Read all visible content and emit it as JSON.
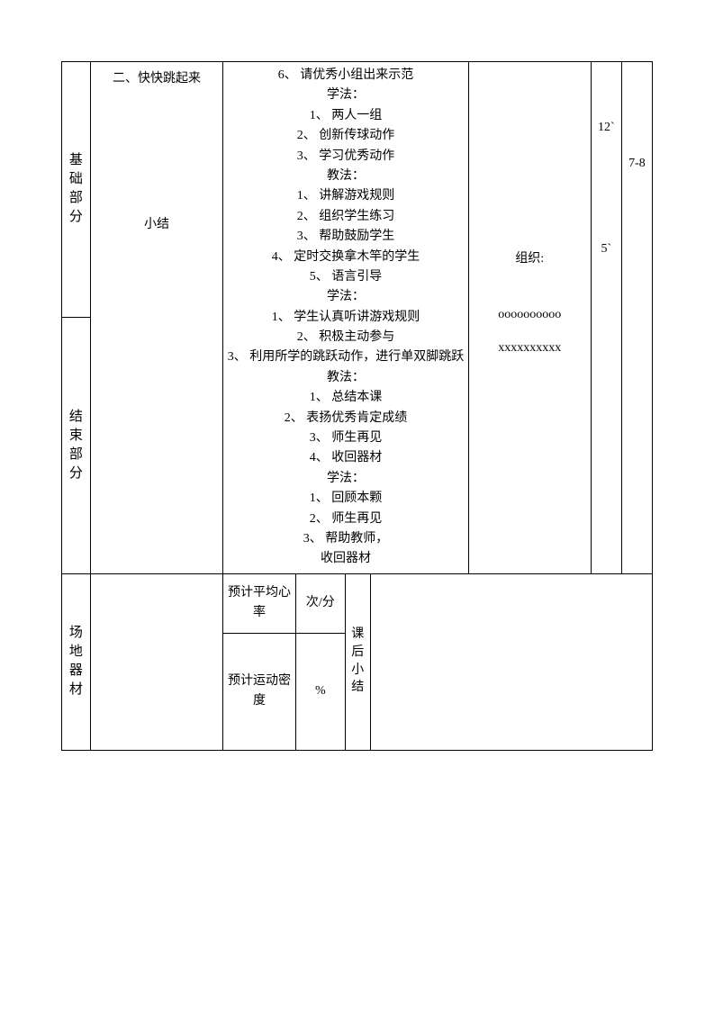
{
  "row1": {
    "labelA": "基础部分",
    "labelB": "结束部分",
    "col2_top": "二、快快跳起来",
    "col2_mid": "小结",
    "col3_lines": [
      "6、  请优秀小组出来示范",
      "学法：",
      "1、  两人一组",
      "2、  创新传球动作",
      "3、  学习优秀动作",
      "教法：",
      "1、  讲解游戏规则",
      "2、  组织学生练习",
      "3、  帮助鼓励学生",
      "4、  定时交换拿木竿的学生",
      "5、  语言引导",
      "学法：",
      "1、  学生认真听讲游戏规则",
      "2、  积极主动参与",
      "3、  利用所学的跳跃动作，进行单双脚跳跃",
      "教法：",
      "1、  总结本课",
      "2、  表扬优秀肯定成绩",
      "3、  师生再见",
      "4、  收回器材",
      "学法：",
      "1、  回顾本颗",
      "2、  师生再见",
      "3、  帮助教师，",
      "收回器材"
    ],
    "col4_title": "组织:",
    "col4_o": "oooooooooo",
    "col4_x": "xxxxxxxxxx",
    "col5_a": "12`",
    "col5_b": "5`",
    "col6": "7-8"
  },
  "row2": {
    "leftLabel": "场地器材",
    "r1c1": "预计平均心率",
    "r1c2": "次/分",
    "r2c1": "预计运动密度",
    "r2c2": "%",
    "midLabel": "课后小结"
  }
}
